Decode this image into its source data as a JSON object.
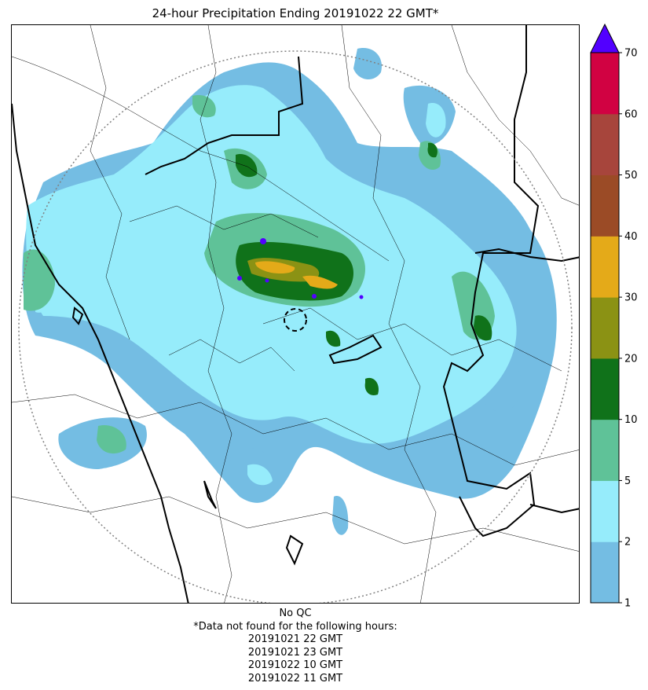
{
  "title": "24-hour Precipitation Ending 20191022 22 GMT*",
  "qc_note": "No QC",
  "missing_note": "*Data not found for the following hours:",
  "missing_hours": [
    "20191021 22 GMT",
    "20191021 23 GMT",
    "20191022 10 GMT",
    "20191022 11 GMT"
  ],
  "colorbar": {
    "ticks": [
      "1",
      "2",
      "5",
      "10",
      "20",
      "30",
      "40",
      "50",
      "60",
      "70"
    ],
    "colors": [
      "#74bde3",
      "#96ecfb",
      "#5fc298",
      "#10721a",
      "#8b9214",
      "#e4aa19",
      "#9b4b26",
      "#a7453c",
      "#d10242"
    ],
    "extend_color": "#5200ff"
  },
  "map": {
    "legend_symbols": {
      "land_fill": "#ffffff",
      "heavy_border": "#000000",
      "range_ring": "#808080"
    },
    "precip_colors": {
      "lt2": "#74bde3",
      "lt5": "#96ecfb",
      "lt10": "#5fc298",
      "lt20": "#10721a",
      "lt30": "#8b9214",
      "lt40": "#e4aa19",
      "ge70": "#5200ff"
    }
  }
}
